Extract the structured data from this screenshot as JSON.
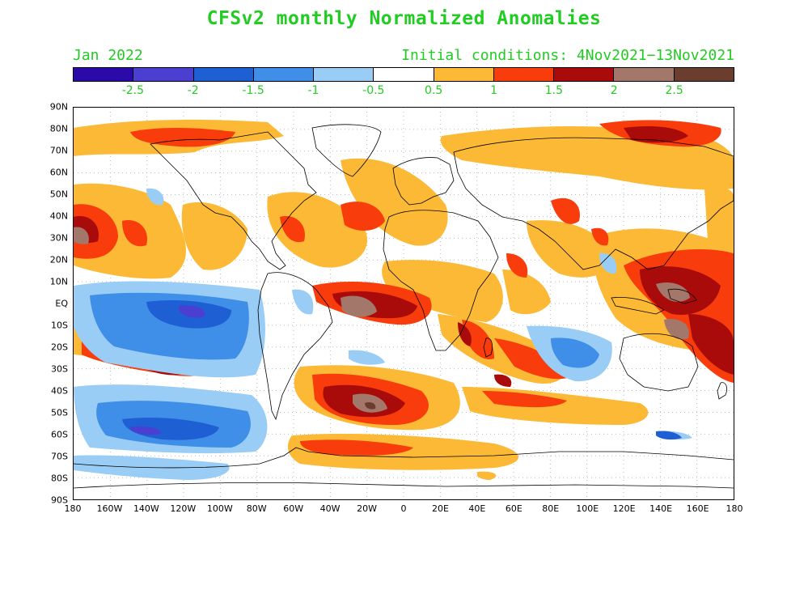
{
  "title": "CFSv2 monthly Normalized Anomalies",
  "month": "Jan 2022",
  "initial_conditions": "Initial conditions: 4Nov2021−13Nov2021",
  "colorbar": {
    "colors": [
      "#2a0aa8",
      "#4b3fd2",
      "#1f5fd4",
      "#3f8ee8",
      "#9acdf5",
      "#ffffff",
      "#fbb935",
      "#f83c0c",
      "#a80b09",
      "#a3776a",
      "#6b3d2f"
    ],
    "labels": [
      "-2.5",
      "-2",
      "-1.5",
      "-1",
      "-0.5",
      "0.5",
      "1",
      "1.5",
      "2",
      "2.5"
    ]
  },
  "lat_labels": [
    "90N",
    "80N",
    "70N",
    "60N",
    "50N",
    "40N",
    "30N",
    "20N",
    "10N",
    "EQ",
    "10S",
    "20S",
    "30S",
    "40S",
    "50S",
    "60S",
    "70S",
    "80S",
    "90S"
  ],
  "lon_labels": [
    "180",
    "160W",
    "140W",
    "120W",
    "100W",
    "80W",
    "60W",
    "40W",
    "20W",
    "0",
    "20E",
    "40E",
    "60E",
    "80E",
    "100E",
    "120E",
    "140E",
    "160E",
    "180"
  ]
}
